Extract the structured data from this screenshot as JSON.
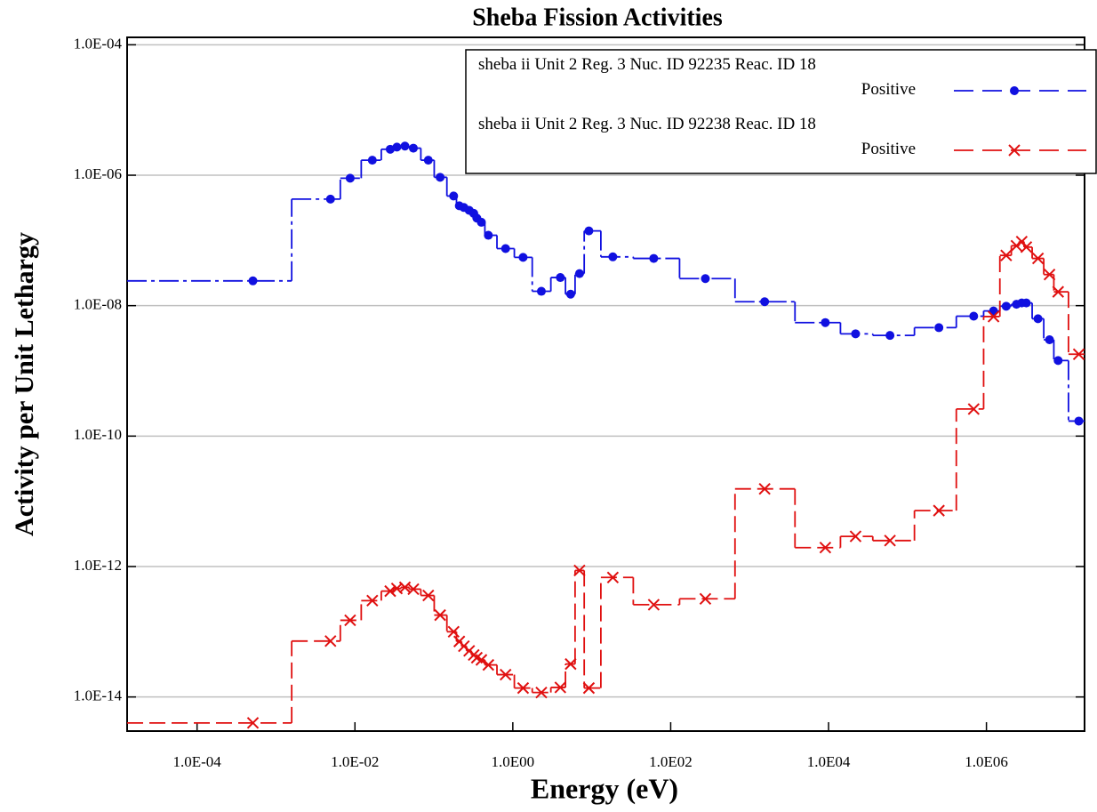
{
  "chart_data": {
    "type": "step",
    "title": "Sheba Fission Activities",
    "x_label": "Energy (eV)",
    "y_label": "Activity per Unit Lethargy",
    "log_x": true,
    "log_y": true,
    "grid": true,
    "legend": "top-right",
    "xlim": [
      1.3e-05,
      17500000.0
    ],
    "ylim": [
      3e-15,
      0.00013
    ],
    "xticks": [
      {
        "value": 0.0001,
        "label": "1.0E-04"
      },
      {
        "value": 0.01,
        "label": "1.0E-02"
      },
      {
        "value": 1,
        "label": "1.0E00"
      },
      {
        "value": 100,
        "label": "1.0E02"
      },
      {
        "value": 10000,
        "label": "1.0E04"
      },
      {
        "value": 1000000,
        "label": "1.0E06"
      }
    ],
    "yticks": [
      {
        "value": 1e-14,
        "label": "1.0E-14"
      },
      {
        "value": 1e-12,
        "label": "1.0E-12"
      },
      {
        "value": 1e-10,
        "label": "1.0E-10"
      },
      {
        "value": 1e-08,
        "label": "1.0E-08"
      },
      {
        "value": 1e-06,
        "label": "1.0E-06"
      },
      {
        "value": 0.0001,
        "label": "1.0E-04"
      }
    ],
    "x": [
      0.00051,
      0.0049,
      0.0087,
      0.0166,
      0.028,
      0.034,
      0.043,
      0.055,
      0.085,
      0.12,
      0.178,
      0.21,
      0.24,
      0.28,
      0.32,
      0.35,
      0.4,
      0.49,
      0.81,
      1.35,
      2.3,
      4.0,
      5.4,
      7.0,
      9.2,
      18.5,
      61,
      275,
      1550,
      9100,
      22000,
      60000,
      250000,
      690000,
      1230000,
      1780000,
      2400000,
      2800000,
      3200000,
      4500000,
      6300000,
      8100000,
      14800000
    ],
    "series": [
      {
        "name": "sheba ii Unit 2 Reg. 3 Nuc. ID 92235 Reac. ID 18 Positive",
        "color": "#1010e0",
        "marker": "circle",
        "values": [
          2.4e-08,
          4.3e-07,
          9e-07,
          1.7e-06,
          2.5e-06,
          2.7e-06,
          2.8e-06,
          2.6e-06,
          1.7e-06,
          9.3e-07,
          4.8e-07,
          3.4e-07,
          3.2e-07,
          2.9e-07,
          2.6e-07,
          2.2e-07,
          1.9e-07,
          1.2e-07,
          7.5e-08,
          5.5e-08,
          1.66e-08,
          2.7e-08,
          1.5e-08,
          3.1e-08,
          1.4e-07,
          5.6e-08,
          5.3e-08,
          2.6e-08,
          1.15e-08,
          5.5e-09,
          3.7e-09,
          3.5e-09,
          4.6e-09,
          6.9e-09,
          8.3e-09,
          9.8e-09,
          1.05e-08,
          1.1e-08,
          1.1e-08,
          6.3e-09,
          3e-09,
          1.44e-09,
          1.7e-10
        ]
      },
      {
        "name": "sheba ii Unit 2 Reg. 3 Nuc. ID 92238 Reac. ID 18 Positive",
        "color": "#e01010",
        "marker": "x",
        "values": [
          4e-15,
          7.2e-14,
          1.5e-13,
          3e-13,
          4.2e-13,
          4.6e-13,
          4.8e-13,
          4.5e-13,
          3.6e-13,
          1.8e-13,
          1e-13,
          7.1e-14,
          6e-14,
          5.1e-14,
          4.4e-14,
          4e-14,
          3.7e-14,
          3.1e-14,
          2.2e-14,
          1.37e-14,
          1.17e-14,
          1.4e-14,
          3.2e-14,
          8.7e-13,
          1.37e-14,
          6.8e-13,
          2.6e-13,
          3.2e-13,
          1.55e-11,
          1.95e-12,
          2.9e-12,
          2.5e-12,
          7.2e-12,
          2.6e-10,
          6.8e-09,
          5.9e-08,
          8.3e-08,
          9.6e-08,
          7.9e-08,
          5.3e-08,
          3e-08,
          1.63e-08,
          1.8e-09
        ]
      }
    ]
  }
}
